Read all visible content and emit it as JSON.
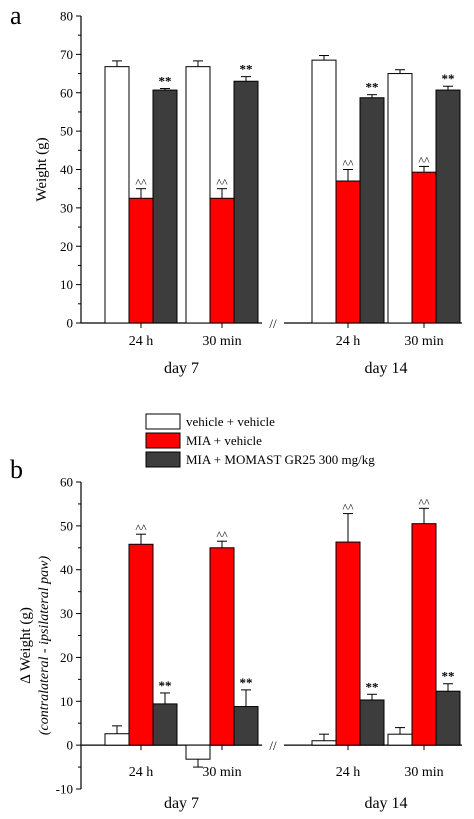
{
  "figure": {
    "panel_a_letter": "a",
    "panel_b_letter": "b"
  },
  "chart_data": [
    {
      "type": "bar",
      "panel": "a",
      "ylabel": "Weight (g)",
      "ylim": [
        0,
        80
      ],
      "yticks": [
        0,
        10,
        20,
        30,
        40,
        50,
        60,
        70,
        80
      ],
      "categories": [
        "24 h",
        "30 min",
        "24 h",
        "30 min"
      ],
      "groups": [
        {
          "label": "day 7",
          "categories": [
            0,
            1
          ]
        },
        {
          "label": "day 14",
          "categories": [
            2,
            3
          ]
        }
      ],
      "axis_break_marker": "//",
      "series": [
        {
          "name": "vehicle + vehicle",
          "color": "#ffffff",
          "values": [
            66.8,
            66.8,
            68.5,
            65.0
          ],
          "errors": [
            1.5,
            1.5,
            1.2,
            1.0
          ],
          "annotations": [
            "",
            "",
            "",
            ""
          ]
        },
        {
          "name": "MIA + vehicle",
          "color": "#ff0000",
          "values": [
            32.5,
            32.5,
            37.0,
            39.3
          ],
          "errors": [
            2.5,
            2.5,
            3.0,
            1.5
          ],
          "annotations": [
            "^^",
            "^^",
            "^^",
            "^^"
          ]
        },
        {
          "name": "MIA + MOMAST GR25 300 mg/kg",
          "color": "#3d3d3d",
          "values": [
            60.7,
            63.0,
            58.7,
            60.7
          ],
          "errors": [
            0.4,
            1.2,
            0.8,
            1.0
          ],
          "annotations": [
            "**",
            "**",
            "**",
            "**"
          ]
        }
      ]
    },
    {
      "type": "bar",
      "panel": "b",
      "ylabel": "Δ Weight (g)",
      "ylabel_sub": "(contralateral - ipsilateral paw)",
      "ylim": [
        -10,
        60
      ],
      "yticks": [
        -10,
        0,
        10,
        20,
        30,
        40,
        50,
        60
      ],
      "categories": [
        "24 h",
        "30 min",
        "24 h",
        "30 min"
      ],
      "groups": [
        {
          "label": "day 7",
          "categories": [
            0,
            1
          ]
        },
        {
          "label": "day 14",
          "categories": [
            2,
            3
          ]
        }
      ],
      "axis_break_marker": "//",
      "legend_position": "top",
      "series": [
        {
          "name": "vehicle + vehicle",
          "color": "#ffffff",
          "values": [
            2.6,
            -3.2,
            1.0,
            2.5
          ],
          "errors": [
            1.8,
            1.8,
            1.5,
            1.5
          ],
          "annotations": [
            "",
            "",
            "",
            ""
          ]
        },
        {
          "name": "MIA + vehicle",
          "color": "#ff0000",
          "values": [
            45.8,
            45.0,
            46.3,
            50.5
          ],
          "errors": [
            2.3,
            1.5,
            6.5,
            3.5
          ],
          "annotations": [
            "^^",
            "^^",
            "^^",
            "^^"
          ]
        },
        {
          "name": "MIA + MOMAST GR25 300 mg/kg",
          "color": "#3d3d3d",
          "values": [
            9.4,
            8.8,
            10.3,
            12.3
          ],
          "errors": [
            2.5,
            3.8,
            1.3,
            1.7
          ],
          "annotations": [
            "**",
            "**",
            "**",
            "**"
          ]
        }
      ]
    }
  ]
}
